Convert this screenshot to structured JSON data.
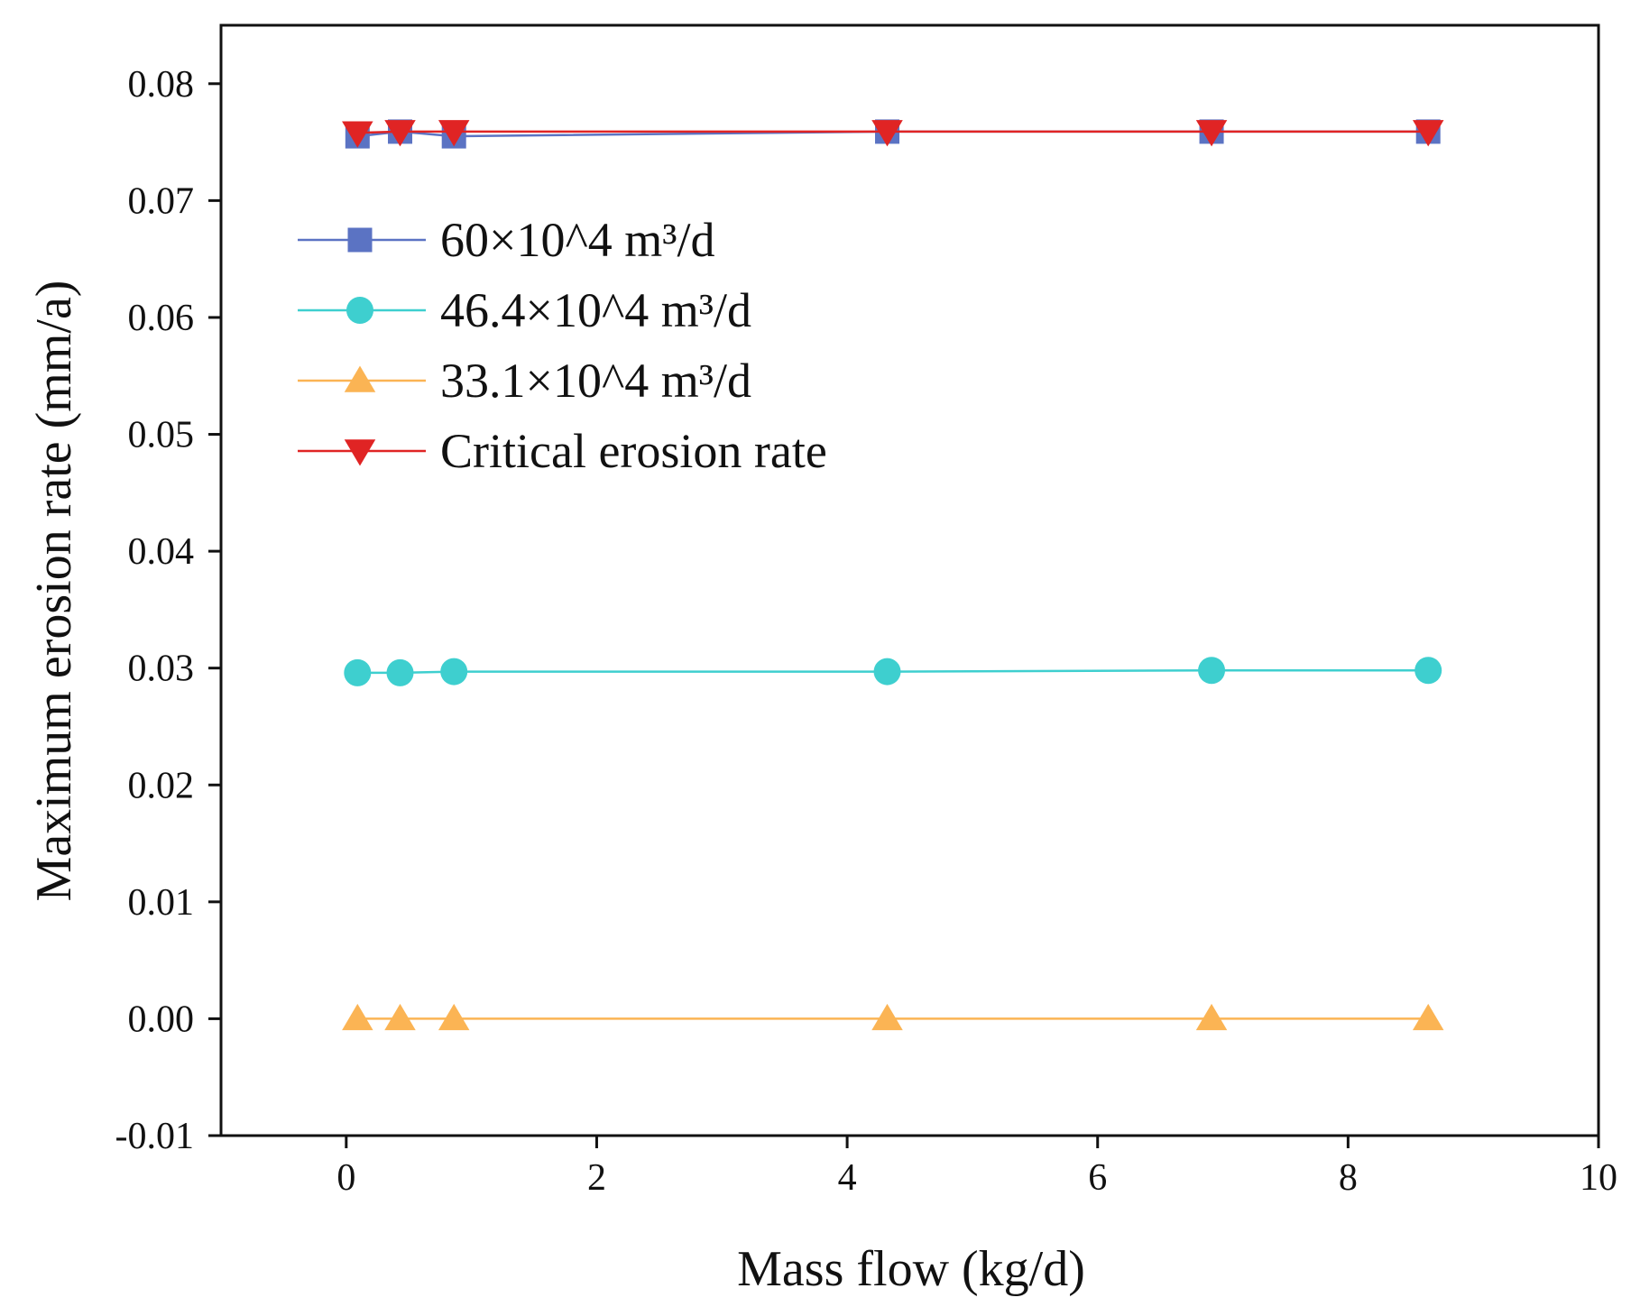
{
  "chart_data": {
    "type": "line",
    "title": "",
    "xlabel": "Mass flow (kg/d)",
    "ylabel": "Maximum erosion rate (mm/a)",
    "xlim": [
      -1,
      10
    ],
    "ylim": [
      -0.01,
      0.085
    ],
    "xticks": [
      0,
      2,
      4,
      6,
      8,
      10
    ],
    "xtick_labels": [
      "0",
      "2",
      "4",
      "6",
      "8",
      "10"
    ],
    "yticks": [
      -0.01,
      0.0,
      0.01,
      0.02,
      0.03,
      0.04,
      0.05,
      0.06,
      0.07,
      0.08
    ],
    "ytick_labels": [
      "-0.01",
      "0.00",
      "0.01",
      "0.02",
      "0.03",
      "0.04",
      "0.05",
      "0.06",
      "0.07",
      "0.08"
    ],
    "grid": false,
    "legend_position": "upper-left",
    "x": [
      0.09,
      0.43,
      0.86,
      4.32,
      6.91,
      8.64
    ],
    "series": [
      {
        "name": "60×10^4 m³/d",
        "color": "#5b73c3",
        "marker": "square",
        "values": [
          0.0755,
          0.0759,
          0.0755,
          0.0759,
          0.0759,
          0.0759
        ]
      },
      {
        "name": "46.4×10^4 m³/d",
        "color": "#3ecfcf",
        "marker": "circle",
        "values": [
          0.0296,
          0.0296,
          0.0297,
          0.0297,
          0.0298,
          0.0298
        ]
      },
      {
        "name": "33.1×10^4 m³/d",
        "color": "#fbb454",
        "marker": "triangle-up",
        "values": [
          0.0,
          0.0,
          0.0,
          0.0,
          0.0,
          0.0
        ]
      },
      {
        "name": "Critical erosion rate",
        "color": "#e02424",
        "marker": "triangle-down",
        "values": [
          0.0758,
          0.0759,
          0.0759,
          0.0759,
          0.0759,
          0.0759
        ]
      }
    ]
  }
}
